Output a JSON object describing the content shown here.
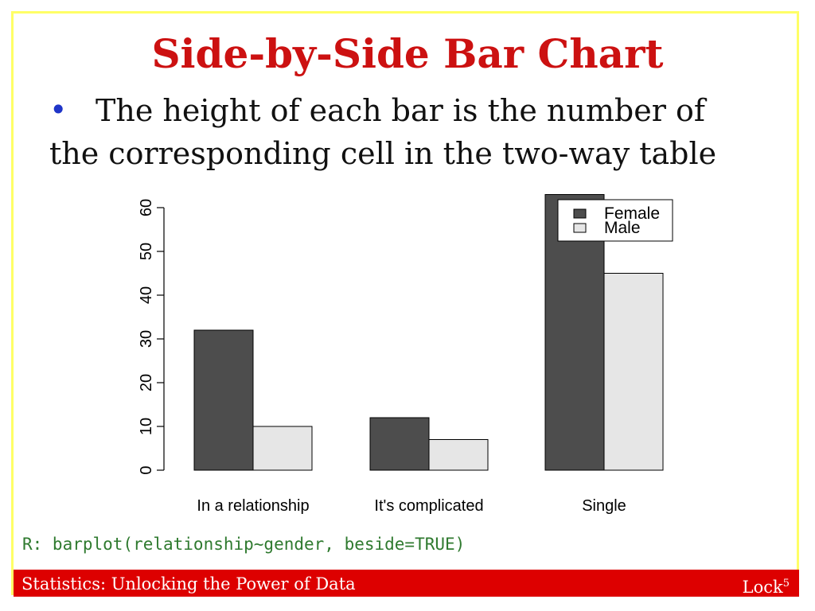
{
  "slide": {
    "title": "Side-by-Side Bar Chart",
    "bullet_line1": "The height of each bar is the number of",
    "bullet_line2": "the corresponding cell in the two-way table",
    "r_code": "R: barplot(relationship~gender, beside=TRUE)",
    "footer_left": "Statistics: Unlocking the Power of Data",
    "footer_right": "Lock",
    "footer_right_sup": "5"
  },
  "colors": {
    "title": "#cc1111",
    "bullet": "#1f35c8",
    "frame": "#ffff66",
    "footer": "#dd0000",
    "code": "#2f7a2f"
  },
  "chart_data": {
    "type": "bar",
    "categories": [
      "In a relationship",
      "It's complicated",
      "Single"
    ],
    "series": [
      {
        "name": "Female",
        "color": "#4d4d4d",
        "values": [
          32,
          12,
          63
        ]
      },
      {
        "name": "Male",
        "color": "#e6e6e6",
        "values": [
          10,
          7,
          45
        ]
      }
    ],
    "ylim": [
      0,
      60
    ],
    "yticks": [
      0,
      10,
      20,
      30,
      40,
      50,
      60
    ],
    "legend_position": "top-right",
    "grid": false
  }
}
